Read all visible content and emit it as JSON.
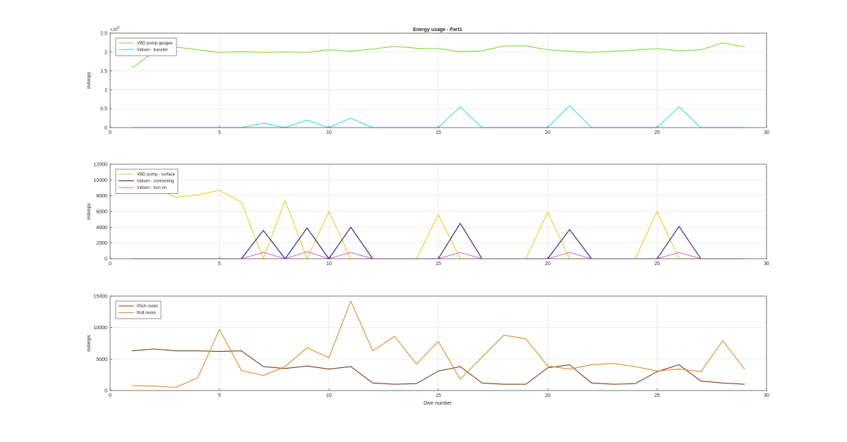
{
  "figure": {
    "title": "Energy usage - Part1",
    "xlabel": "Dive number"
  },
  "chart_data": [
    {
      "type": "line",
      "title": "Energy usage - Part1",
      "xlabel": "",
      "ylabel": "mAmps",
      "xlim": [
        0,
        30
      ],
      "ylim": [
        0,
        250000
      ],
      "xticks": [
        "0",
        "5",
        "10",
        "15",
        "20",
        "25",
        "30"
      ],
      "yticks": [
        "0",
        "0.5",
        "1",
        "1.5",
        "2",
        "2.5"
      ],
      "ytick_values": [
        0,
        50000,
        100000,
        150000,
        200000,
        250000
      ],
      "y_exponent_label": "×10",
      "y_exponent_power": "5",
      "grid": true,
      "legend_position": "top-left",
      "x": [
        1,
        2,
        3,
        4,
        5,
        6,
        7,
        8,
        9,
        10,
        11,
        12,
        13,
        14,
        15,
        16,
        17,
        18,
        19,
        20,
        21,
        22,
        23,
        24,
        25,
        26,
        27,
        28,
        29
      ],
      "series": [
        {
          "name": "VBD pump apogee",
          "color": "#77dd33",
          "values": [
            158000,
            200000,
            213000,
            206000,
            199000,
            201000,
            199000,
            200000,
            199000,
            206000,
            202000,
            208000,
            215000,
            210000,
            209000,
            201000,
            203000,
            216000,
            216000,
            206000,
            202000,
            199000,
            202000,
            205000,
            209000,
            203000,
            206000,
            224000,
            214000
          ]
        },
        {
          "name": "Iridium - transfer",
          "color": "#33dddd",
          "values": [
            0,
            0,
            0,
            0,
            0,
            0,
            12000,
            0,
            20000,
            0,
            25000,
            0,
            0,
            0,
            0,
            55000,
            0,
            0,
            0,
            0,
            58000,
            0,
            0,
            0,
            0,
            55000,
            0,
            0,
            0
          ]
        }
      ]
    },
    {
      "type": "line",
      "title": "",
      "xlabel": "",
      "ylabel": "mAmps",
      "xlim": [
        0,
        30
      ],
      "ylim": [
        0,
        12000
      ],
      "xticks": [
        "0",
        "5",
        "10",
        "15",
        "20",
        "25",
        "30"
      ],
      "yticks": [
        "0",
        "2000",
        "4000",
        "6000",
        "8000",
        "10000",
        "12000"
      ],
      "ytick_values": [
        0,
        2000,
        4000,
        6000,
        8000,
        10000,
        12000
      ],
      "grid": true,
      "legend_position": "top-left",
      "x": [
        1,
        2,
        3,
        4,
        5,
        6,
        7,
        8,
        9,
        10,
        11,
        12,
        13,
        14,
        15,
        16,
        17,
        18,
        19,
        20,
        21,
        22,
        23,
        24,
        25,
        26,
        27,
        28,
        29
      ],
      "series": [
        {
          "name": "VBD pump - surface",
          "color": "#eecc22",
          "values": [
            9000,
            9100,
            7800,
            8100,
            8700,
            7200,
            0,
            7400,
            0,
            6000,
            0,
            0,
            0,
            0,
            5600,
            0,
            0,
            0,
            0,
            5900,
            0,
            0,
            0,
            0,
            6000,
            0,
            0,
            0,
            0
          ]
        },
        {
          "name": "Iridium - connecting",
          "color": "#1a1a8c",
          "values": [
            0,
            0,
            0,
            0,
            0,
            0,
            3600,
            0,
            3900,
            0,
            4000,
            0,
            0,
            0,
            0,
            4500,
            0,
            0,
            0,
            0,
            3700,
            0,
            0,
            0,
            0,
            4100,
            0,
            0,
            0
          ]
        },
        {
          "name": "Iridium - turn on",
          "color": "#dd66bb",
          "values": [
            0,
            0,
            0,
            0,
            0,
            0,
            800,
            0,
            900,
            0,
            800,
            0,
            0,
            0,
            0,
            800,
            0,
            0,
            0,
            0,
            800,
            0,
            0,
            0,
            0,
            800,
            0,
            0,
            0
          ]
        }
      ]
    },
    {
      "type": "line",
      "title": "",
      "xlabel": "Dive number",
      "ylabel": "mAmps",
      "xlim": [
        0,
        30
      ],
      "ylim": [
        0,
        15000
      ],
      "xticks": [
        "0",
        "5",
        "10",
        "15",
        "20",
        "25",
        "30"
      ],
      "yticks": [
        "0",
        "5000",
        "10000",
        "15000"
      ],
      "ytick_values": [
        0,
        5000,
        10000,
        15000
      ],
      "grid": true,
      "legend_position": "top-left",
      "x": [
        1,
        2,
        3,
        4,
        5,
        6,
        7,
        8,
        9,
        10,
        11,
        12,
        13,
        14,
        15,
        16,
        17,
        18,
        19,
        20,
        21,
        22,
        23,
        24,
        25,
        26,
        27,
        28,
        29
      ],
      "series": [
        {
          "name": "Pitch motor",
          "color": "#7a3a10",
          "values": [
            6300,
            6600,
            6300,
            6300,
            6200,
            6300,
            3800,
            3500,
            3900,
            3400,
            3800,
            1200,
            1000,
            1100,
            3100,
            3800,
            1200,
            1000,
            1000,
            3600,
            4100,
            1200,
            1000,
            1100,
            3000,
            4100,
            1500,
            1200,
            1000
          ]
        },
        {
          "name": "Roll motor",
          "color": "#dd8a22",
          "values": [
            800,
            700,
            500,
            2000,
            9700,
            3200,
            2400,
            3800,
            6800,
            5200,
            14200,
            6300,
            8600,
            4200,
            7800,
            1800,
            5300,
            8800,
            8200,
            3900,
            3400,
            4100,
            4300,
            3800,
            3100,
            3400,
            3000,
            7900,
            3400
          ]
        }
      ]
    }
  ]
}
